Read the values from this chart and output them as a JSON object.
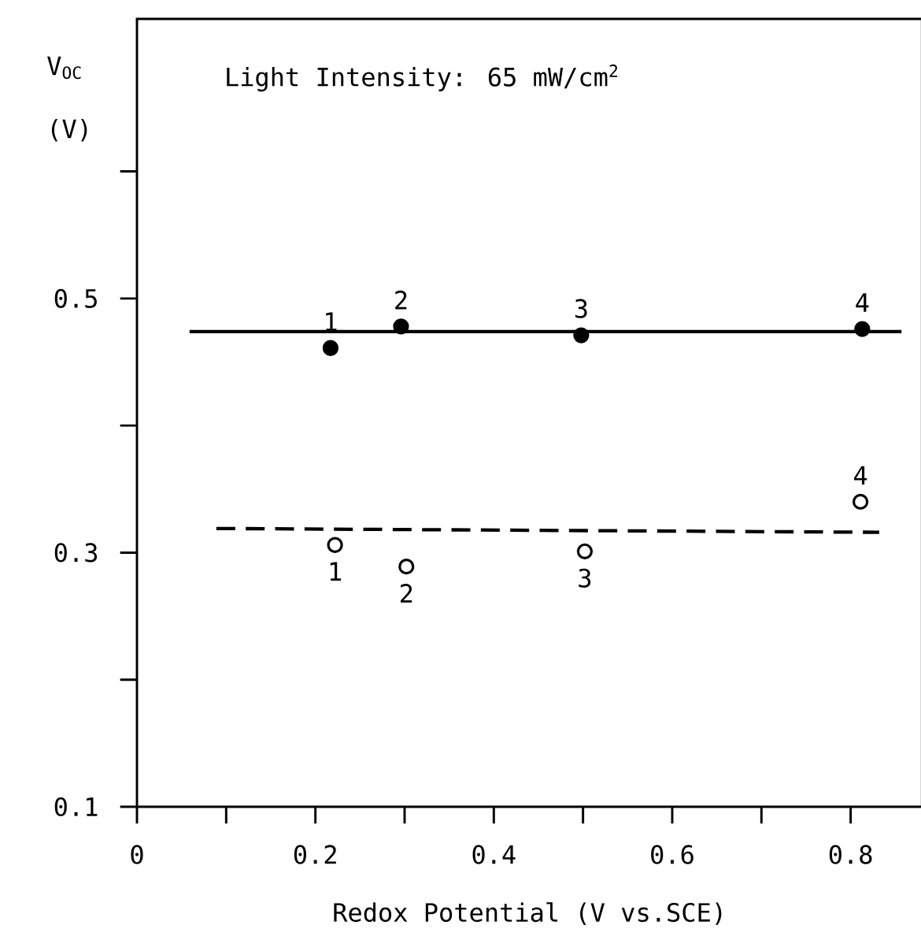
{
  "chart_data": {
    "type": "scatter",
    "xlabel": "Redox Potential (V vs.SCE)",
    "ylabel": "V$_{OC}$ (V)",
    "annotations": [
      "Light Intensity: 65 mW/cm$^{2}$",
      {
        "text": "1",
        "x": 0.217,
        "y": 0.461
      },
      {
        "text": "2",
        "x": 0.296,
        "y": 0.478
      },
      {
        "text": "3",
        "x": 0.498,
        "y": 0.471
      },
      {
        "text": "4",
        "x": 0.813,
        "y": 0.476
      },
      {
        "text": "1",
        "x": 0.222,
        "y": 0.306
      },
      {
        "text": "2",
        "x": 0.302,
        "y": 0.289
      },
      {
        "text": "3",
        "x": 0.502,
        "y": 0.301
      },
      {
        "text": "4",
        "x": 0.811,
        "y": 0.34
      }
    ],
    "xlim": [
      0,
      0.88
    ],
    "ylim": [
      0.1,
      0.72
    ],
    "xticks": [
      0,
      {
        "value": 0.1,
        "label": null
      },
      0.2,
      {
        "value": 0.3,
        "label": null
      },
      0.4,
      {
        "value": 0.5,
        "label": null
      },
      0.6,
      {
        "value": 0.7,
        "label": null
      },
      0.8
    ],
    "yticks": [
      0.1,
      {
        "value": 0.2,
        "label": null
      },
      0.3,
      {
        "value": 0.4,
        "label": null
      },
      0.5,
      {
        "value": 0.6,
        "label": null
      }
    ],
    "series": [
      {
        "marker": "circle",
        "color": "#000000",
        "x": [
          0.217,
          0.296,
          0.498,
          0.813
        ],
        "values": [
          0.461,
          0.478,
          0.471,
          0.476
        ]
      },
      {
        "marker": "open circle",
        "color": "#000000",
        "x": [
          0.222,
          0.302,
          0.502,
          0.811
        ],
        "values": [
          0.306,
          0.289,
          0.301,
          0.34
        ]
      },
      {
        "type": "line",
        "marker": "none",
        "line_style": "solid",
        "color": "#000000",
        "x": [
          0.059,
          0.857
        ],
        "values": [
          0.474,
          0.474
        ]
      },
      {
        "type": "line",
        "marker": "none",
        "line_style": "dashed",
        "color": "#000000",
        "x": [
          0.089,
          0.832
        ],
        "values": [
          0.319,
          0.316
        ]
      }
    ]
  }
}
